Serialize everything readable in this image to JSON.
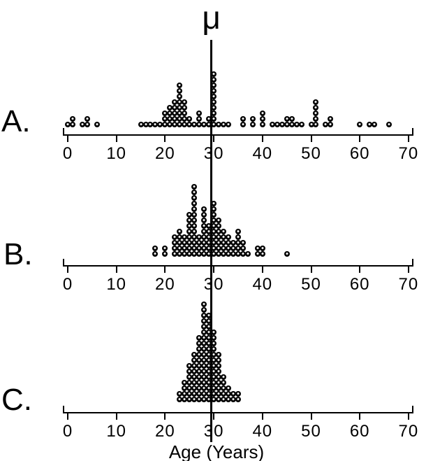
{
  "figure": {
    "mu_symbol": "μ",
    "x_axis_label": "Age (Years)",
    "tick_labels": [
      "0",
      "10",
      "20",
      "30",
      "40",
      "50",
      "60",
      "70"
    ],
    "panel_labels": [
      "A.",
      "B.",
      "C."
    ],
    "colors": {
      "ink": "#000000",
      "background": "#ffffff"
    }
  },
  "chart_data": {
    "type": "dotplot",
    "xlabel": "Age (Years)",
    "xlim": [
      0,
      70
    ],
    "xticks": [
      0,
      10,
      20,
      30,
      40,
      50,
      60,
      70
    ],
    "grid": false,
    "annotation": {
      "label": "μ",
      "x": 29.5,
      "style": "vertical-reference-line-through-all-panels"
    },
    "panels": [
      {
        "label": "A.",
        "stacks": [
          [
            0,
            1
          ],
          [
            1,
            2
          ],
          [
            3,
            1
          ],
          [
            4,
            2
          ],
          [
            6,
            1
          ],
          [
            15,
            1
          ],
          [
            16,
            1
          ],
          [
            17,
            1
          ],
          [
            18,
            1
          ],
          [
            19,
            1
          ],
          [
            20,
            3
          ],
          [
            21,
            4
          ],
          [
            22,
            5
          ],
          [
            23,
            8
          ],
          [
            24,
            5
          ],
          [
            25,
            2
          ],
          [
            26,
            1
          ],
          [
            27,
            3
          ],
          [
            28,
            1
          ],
          [
            29,
            2
          ],
          [
            30,
            10
          ],
          [
            31,
            1
          ],
          [
            32,
            1
          ],
          [
            33,
            1
          ],
          [
            36,
            2
          ],
          [
            38,
            2
          ],
          [
            40,
            3
          ],
          [
            42,
            1
          ],
          [
            43,
            1
          ],
          [
            44,
            1
          ],
          [
            45,
            2
          ],
          [
            46,
            2
          ],
          [
            47,
            1
          ],
          [
            48,
            1
          ],
          [
            50,
            1
          ],
          [
            51,
            5
          ],
          [
            53,
            1
          ],
          [
            54,
            2
          ],
          [
            60,
            1
          ],
          [
            62,
            1
          ],
          [
            63,
            1
          ],
          [
            66,
            1
          ]
        ]
      },
      {
        "label": "B.",
        "stacks": [
          [
            18,
            2
          ],
          [
            20,
            2
          ],
          [
            22,
            4
          ],
          [
            23,
            5
          ],
          [
            24,
            4
          ],
          [
            25,
            8
          ],
          [
            26,
            13
          ],
          [
            27,
            4
          ],
          [
            28,
            9
          ],
          [
            29,
            6
          ],
          [
            30,
            10
          ],
          [
            31,
            7
          ],
          [
            32,
            5
          ],
          [
            33,
            4
          ],
          [
            34,
            3
          ],
          [
            35,
            5
          ],
          [
            36,
            3
          ],
          [
            37,
            1
          ],
          [
            39,
            2
          ],
          [
            40,
            2
          ],
          [
            45,
            1
          ]
        ]
      },
      {
        "label": "C.",
        "stacks": [
          [
            23,
            2
          ],
          [
            24,
            4
          ],
          [
            25,
            7
          ],
          [
            26,
            9
          ],
          [
            27,
            12
          ],
          [
            28,
            18
          ],
          [
            29,
            16
          ],
          [
            30,
            13
          ],
          [
            31,
            9
          ],
          [
            32,
            5
          ],
          [
            33,
            3
          ],
          [
            34,
            2
          ],
          [
            35,
            2
          ]
        ]
      }
    ]
  }
}
